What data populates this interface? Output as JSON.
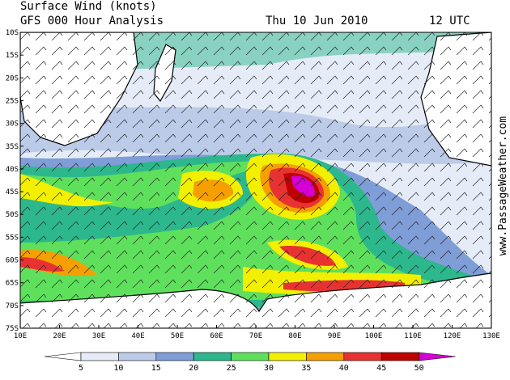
{
  "header": {
    "title": "Surface Wind (knots)",
    "subtitle": "GFS 000 Hour Analysis",
    "date": "Thu 10 Jun 2010",
    "time": "12 UTC"
  },
  "map": {
    "lat_labels": [
      "10S",
      "15S",
      "20S",
      "25S",
      "30S",
      "35S",
      "40S",
      "45S",
      "50S",
      "55S",
      "60S",
      "65S",
      "70S",
      "75S"
    ],
    "lon_labels": [
      "10E",
      "20E",
      "30E",
      "40E",
      "50E",
      "60E",
      "70E",
      "80E",
      "90E",
      "100E",
      "110E",
      "120E",
      "130E"
    ],
    "watermark": "www.PassageWeather.com"
  },
  "legend": {
    "levels": [
      5,
      10,
      15,
      20,
      25,
      30,
      35,
      40,
      45,
      50
    ],
    "colors": [
      "#ffffff",
      "#e6ecf7",
      "#bccbe8",
      "#7f9dd6",
      "#2cb88c",
      "#5fe05c",
      "#f2f000",
      "#f5a000",
      "#e83232",
      "#c00000",
      "#d400d4"
    ]
  }
}
